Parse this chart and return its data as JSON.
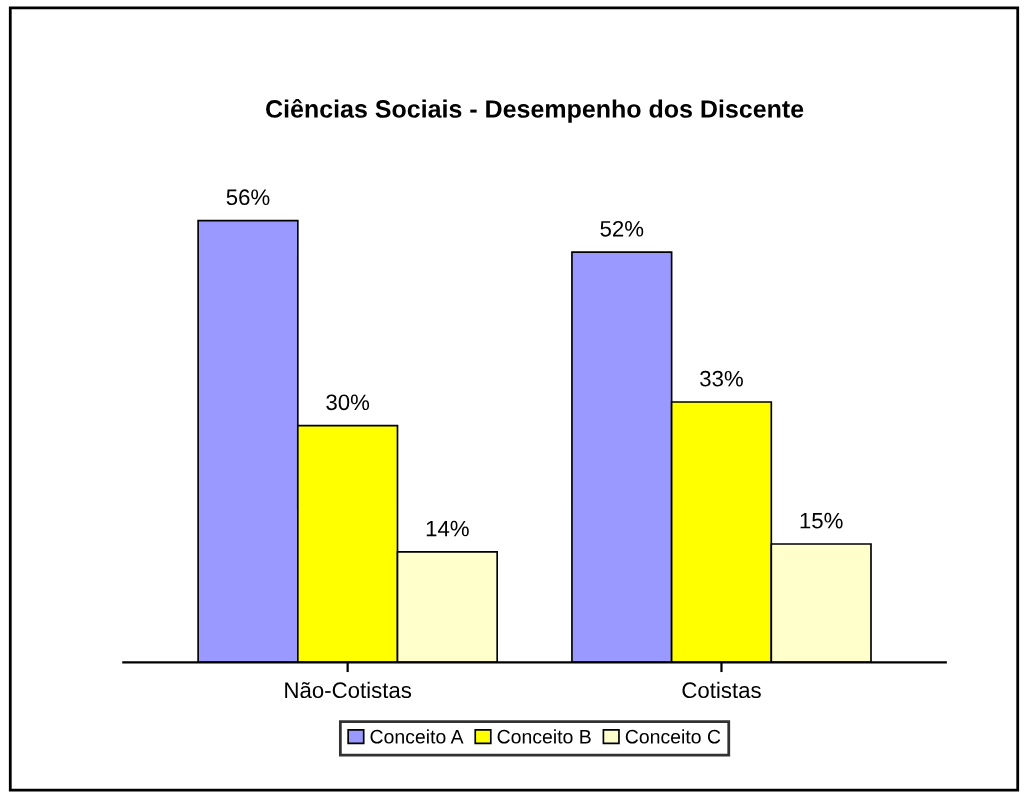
{
  "chart_data": {
    "type": "bar",
    "title": "Ciências Sociais - Desempenho dos Discente",
    "categories": [
      "Não-Cotistas",
      "Cotistas"
    ],
    "series": [
      {
        "name": "Conceito A",
        "color": "#9999ff",
        "values": [
          56,
          52
        ],
        "value_labels": [
          "56%",
          "52%"
        ]
      },
      {
        "name": "Conceito B",
        "color": "#ffff00",
        "values": [
          30,
          33
        ],
        "value_labels": [
          "30%",
          "33%"
        ]
      },
      {
        "name": "Conceito C",
        "color": "#ffffcc",
        "values": [
          14,
          15
        ],
        "value_labels": [
          "14%",
          "15%"
        ]
      }
    ],
    "legend": "bottom",
    "grid": false
  }
}
